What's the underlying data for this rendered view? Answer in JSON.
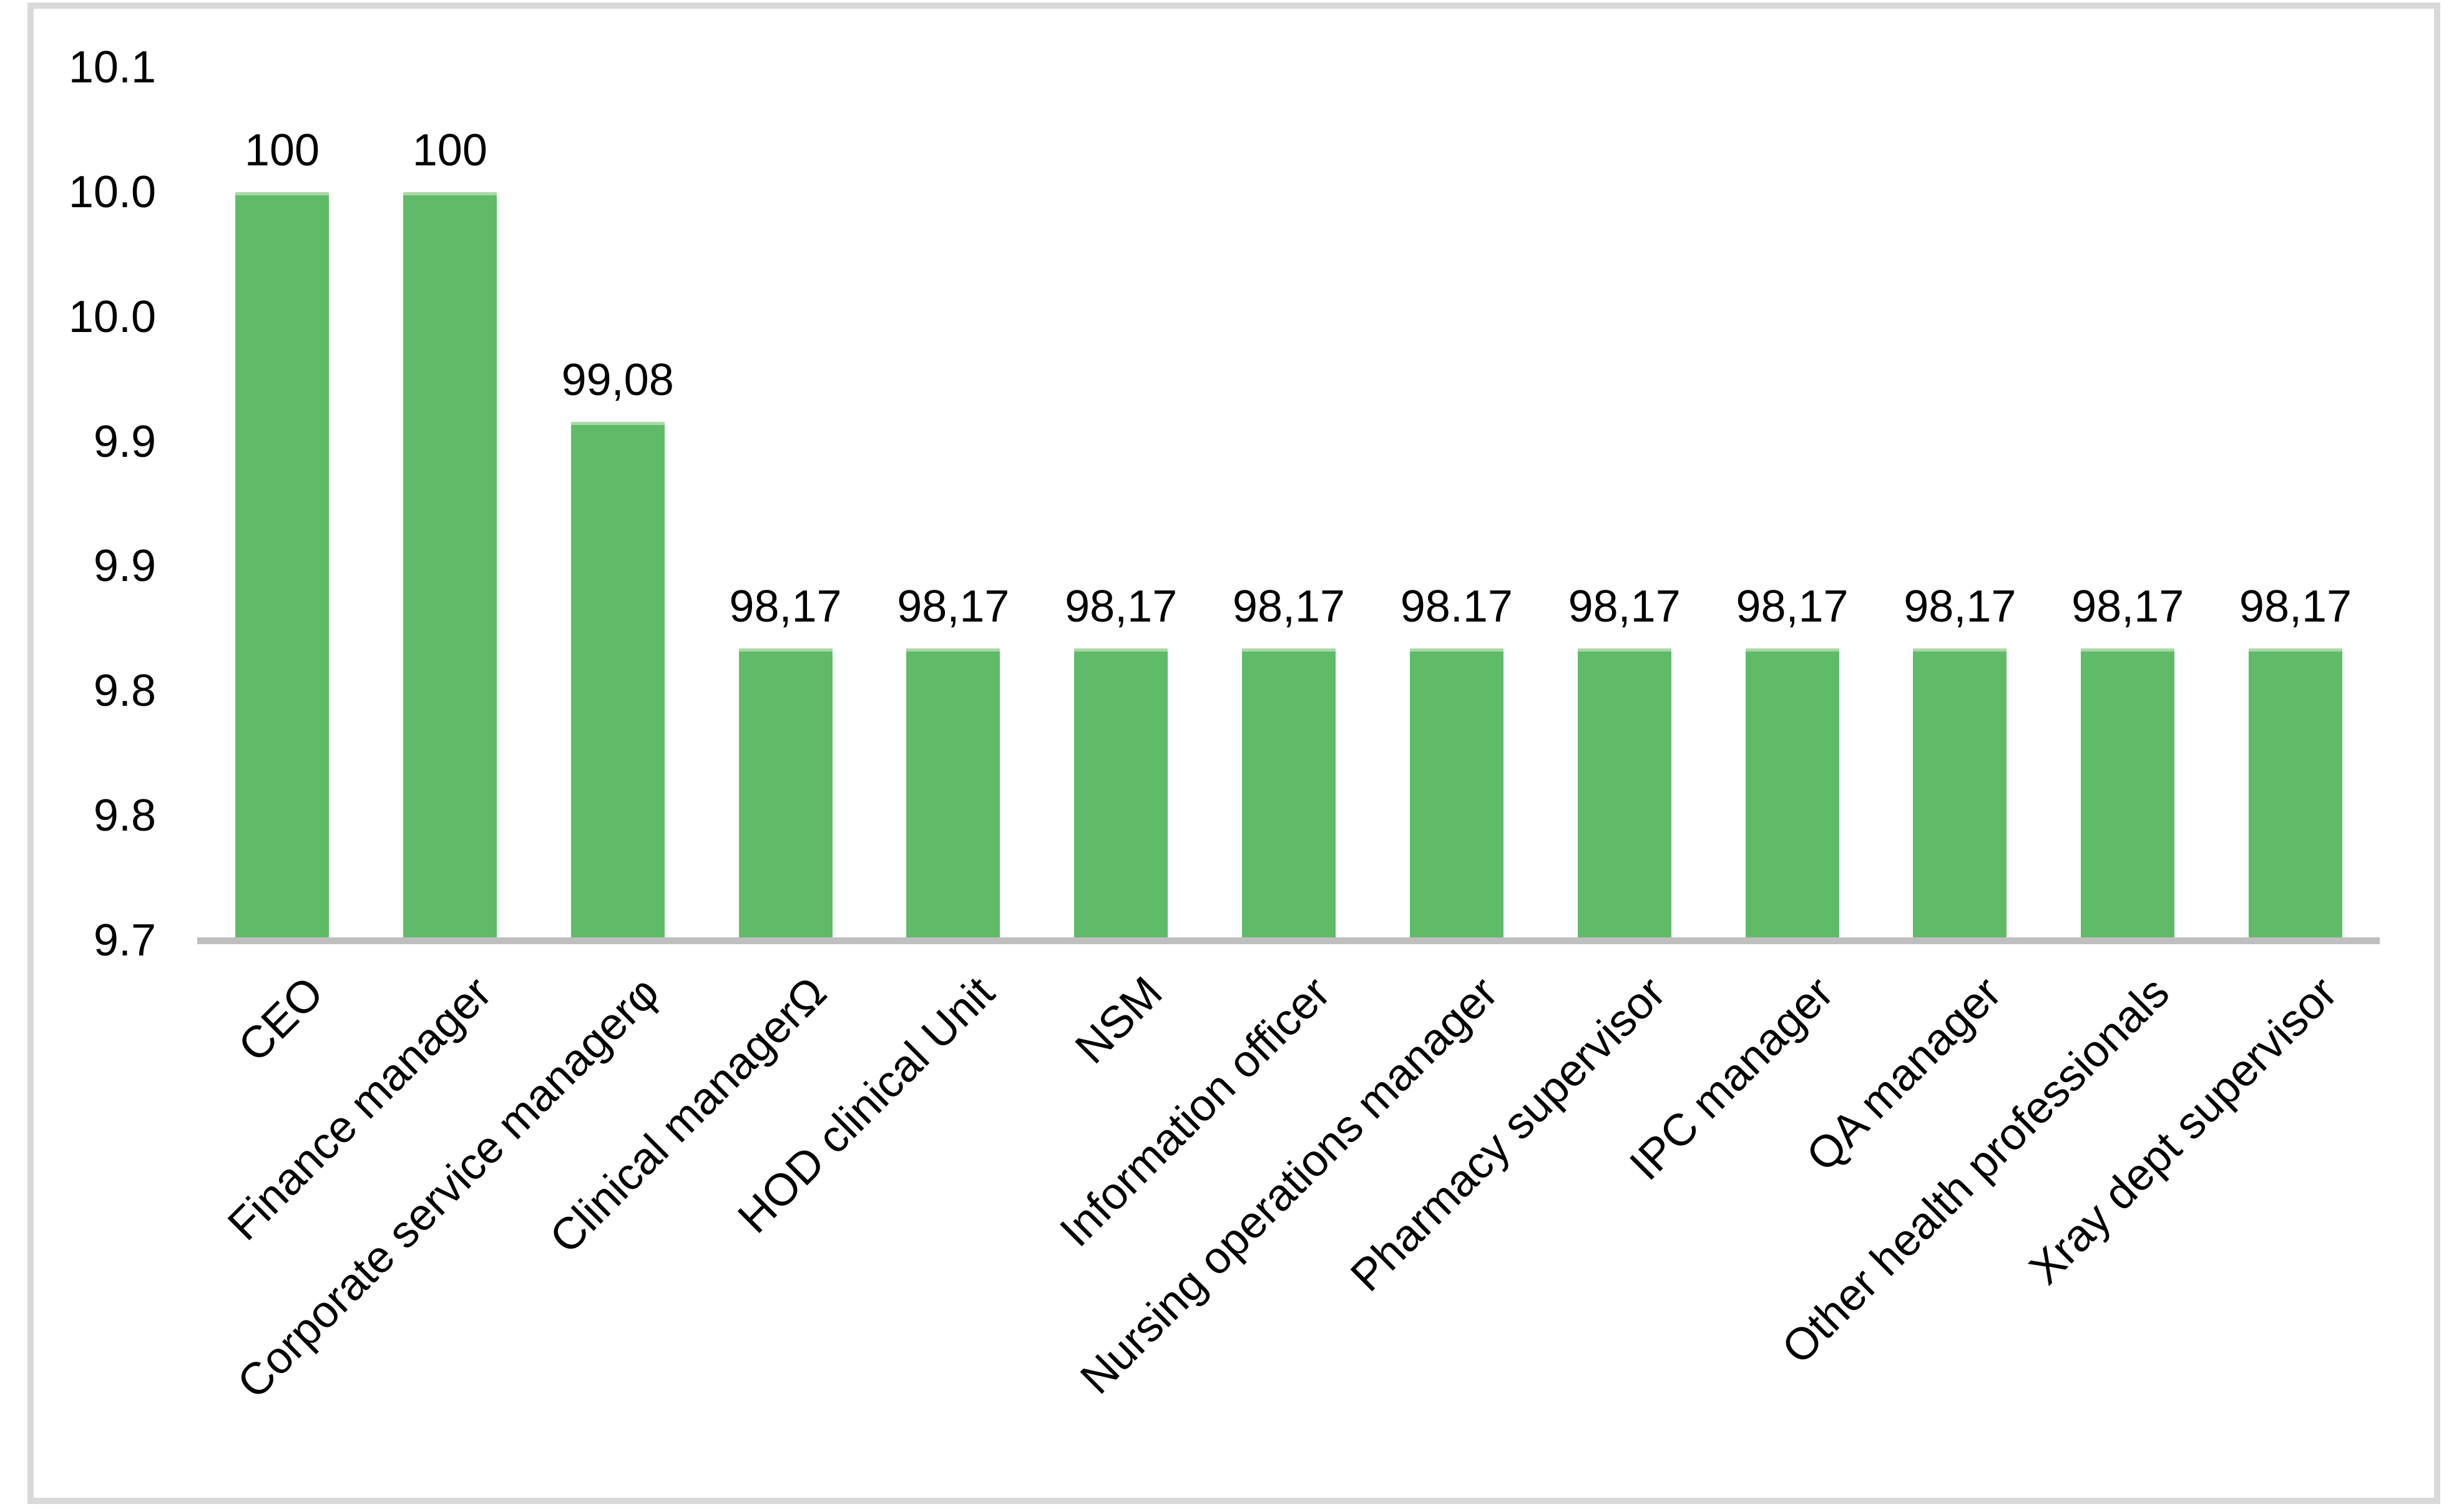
{
  "chart_data": {
    "type": "bar",
    "title": "",
    "xlabel": "",
    "ylabel": "",
    "grid": false,
    "legend": false,
    "categories": [
      "CEO",
      "Finance manager",
      "Corporate service managerφ",
      "Clinical managerΩ",
      "HOD clinical Unit",
      "NSM",
      "Information officer",
      "Nursing operations manager",
      "Pharmacy supervisor",
      "IPC manager",
      "QA manager",
      "Other health professionals",
      "Xray dept supervisor"
    ],
    "values": [
      100,
      100,
      99.08,
      98.17,
      98.17,
      98.17,
      98.17,
      98.17,
      98.17,
      98.17,
      98.17,
      98.17,
      98.17
    ],
    "data_labels": [
      "100",
      "100",
      "99,08",
      "98,17",
      "98,17",
      "98,17",
      "98,17",
      "98.17",
      "98,17",
      "98,17",
      "98,17",
      "98,17",
      "98,17"
    ],
    "y_ticks_top_to_bottom": [
      "10.1",
      "10.0",
      "10.0",
      "9.9",
      "9.9",
      "9.8",
      "9.8",
      "9.7"
    ],
    "y_axis_min": 97.0,
    "y_axis_max": 100.5,
    "bar_color": "#5FBB68",
    "bar_top_edge_color": "#ABD8A6",
    "axis_line_color": "#BFBFBF",
    "frame_border_color": "#D9D9D9",
    "text_color": "#000000",
    "background_color": "#FFFFFF"
  }
}
